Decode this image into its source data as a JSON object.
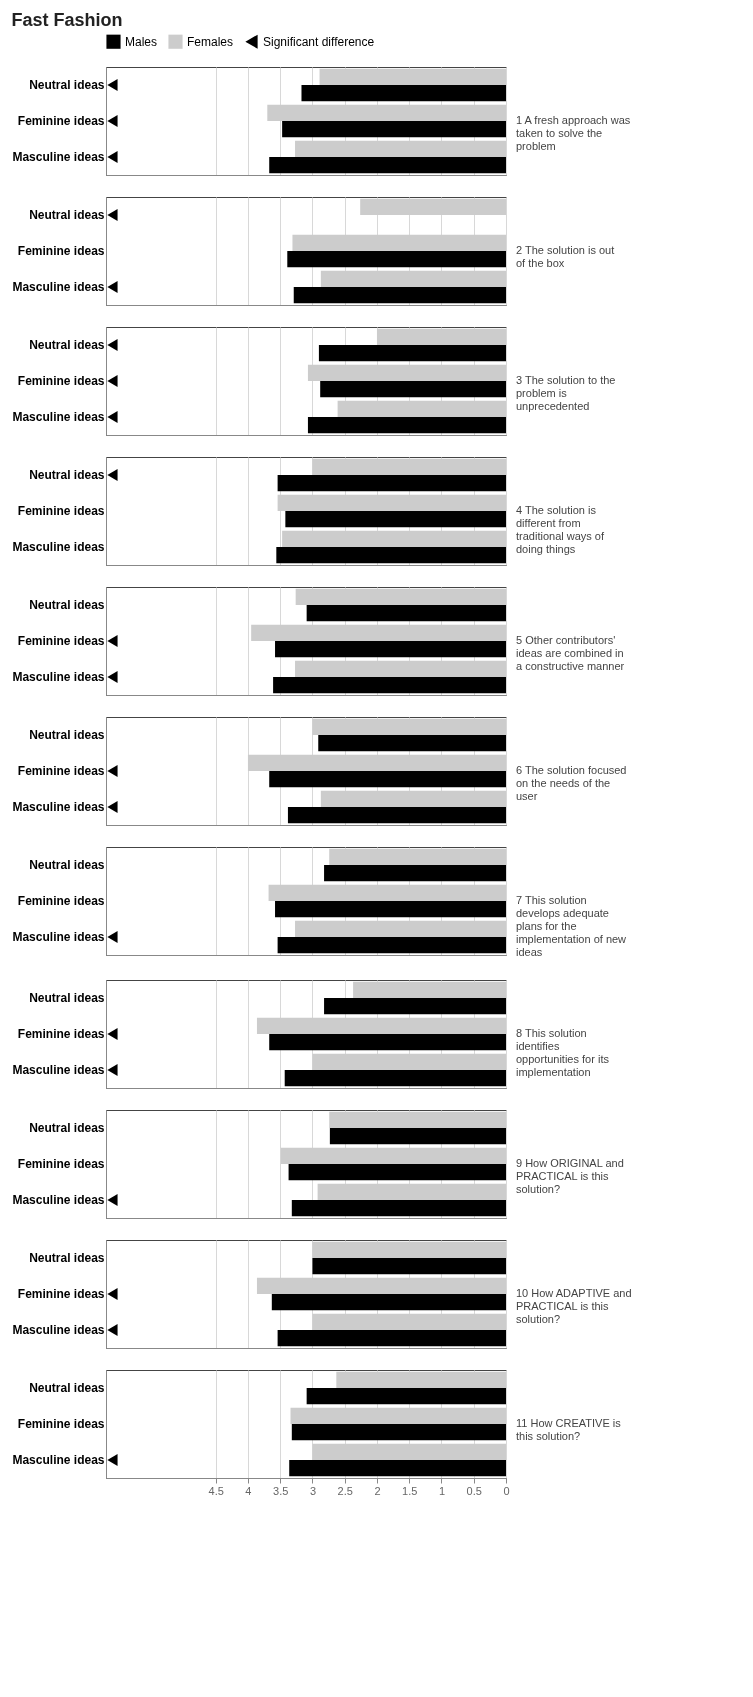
{
  "chart_data": [
    {
      "type": "bar",
      "orientation": "horizontal",
      "title": "Fast Fashion",
      "legend": "top",
      "ylabel": "1 A fresh approach was taken to solve the problem",
      "categories": [
        "Neutral ideas",
        "Feminine ideas",
        "Masculine ideas"
      ],
      "xlim": [
        6.2,
        0
      ],
      "xticks": [
        0,
        0.5,
        1,
        1.5,
        2,
        2.5,
        3,
        3.5,
        4,
        4.5
      ],
      "grid": "x",
      "tick_labels": "y",
      "series": [
        {
          "name": "Males",
          "color": "#000000",
          "values": [
            3.17,
            3.47,
            3.67
          ]
        },
        {
          "name": "Females",
          "color": "#cccccc",
          "values": [
            2.89,
            3.7,
            3.27
          ]
        },
        {
          "name": "Significant difference",
          "type": "scatter",
          "marker": "triangle",
          "color": "#000000",
          "values": [
            6.1,
            6.1,
            6.1
          ]
        }
      ]
    },
    {
      "type": "bar",
      "orientation": "horizontal",
      "ylabel": "2 The solution is out of the box",
      "categories": [
        "Neutral ideas",
        "Feminine ideas",
        "Masculine ideas"
      ],
      "xlim": [
        6.2,
        0
      ],
      "xticks": [
        0,
        0.5,
        1,
        1.5,
        2,
        2.5,
        3,
        3.5,
        4,
        4.5
      ],
      "grid": "x",
      "tick_labels": "y",
      "series": [
        {
          "color": "#000000",
          "values": [
            null,
            3.39,
            3.29
          ]
        },
        {
          "color": "#cccccc",
          "values": [
            2.26,
            3.31,
            2.87
          ]
        },
        {
          "type": "scatter",
          "marker": "triangle",
          "color": "#000000",
          "values": [
            6.1,
            null,
            6.1
          ]
        }
      ]
    },
    {
      "type": "bar",
      "orientation": "horizontal",
      "ylabel": "3 The solution to the problem is unprecedented",
      "categories": [
        "Neutral ideas",
        "Feminine ideas",
        "Masculine ideas"
      ],
      "xlim": [
        6.2,
        0
      ],
      "xticks": [
        0,
        0.5,
        1,
        1.5,
        2,
        2.5,
        3,
        3.5,
        4,
        4.5
      ],
      "grid": "x",
      "tick_labels": "y",
      "series": [
        {
          "color": "#000000",
          "values": [
            2.9,
            2.88,
            3.07
          ]
        },
        {
          "color": "#cccccc",
          "values": [
            2.0,
            3.07,
            2.61
          ]
        },
        {
          "type": "scatter",
          "marker": "triangle",
          "color": "#000000",
          "values": [
            6.1,
            6.1,
            6.1
          ]
        }
      ]
    },
    {
      "type": "bar",
      "orientation": "horizontal",
      "ylabel": "4 The solution is different from traditional ways of doing things",
      "categories": [
        "Neutral ideas",
        "Feminine ideas",
        "Masculine ideas"
      ],
      "xlim": [
        6.2,
        0
      ],
      "xticks": [
        0,
        0.5,
        1,
        1.5,
        2,
        2.5,
        3,
        3.5,
        4,
        4.5
      ],
      "grid": "x",
      "tick_labels": "y",
      "series": [
        {
          "color": "#000000",
          "values": [
            3.54,
            3.42,
            3.56
          ]
        },
        {
          "color": "#cccccc",
          "values": [
            3.0,
            3.54,
            3.47
          ]
        },
        {
          "type": "scatter",
          "marker": "triangle",
          "color": "#000000",
          "values": [
            6.1,
            null,
            null
          ]
        }
      ]
    },
    {
      "type": "bar",
      "orientation": "horizontal",
      "ylabel": "5 Other contributors' ideas are combined in a constructive manner",
      "categories": [
        "Neutral ideas",
        "Feminine ideas",
        "Masculine ideas"
      ],
      "xlim": [
        6.2,
        0
      ],
      "xticks": [
        0,
        0.5,
        1,
        1.5,
        2,
        2.5,
        3,
        3.5,
        4,
        4.5
      ],
      "grid": "x",
      "tick_labels": "y",
      "series": [
        {
          "color": "#000000",
          "values": [
            3.09,
            3.58,
            3.61
          ]
        },
        {
          "color": "#cccccc",
          "values": [
            3.26,
            3.95,
            3.27
          ]
        },
        {
          "type": "scatter",
          "marker": "triangle",
          "color": "#000000",
          "values": [
            null,
            6.1,
            6.1
          ]
        }
      ]
    },
    {
      "type": "bar",
      "orientation": "horizontal",
      "ylabel": "6 The solution focused on the needs of the user",
      "categories": [
        "Neutral ideas",
        "Feminine ideas",
        "Masculine ideas"
      ],
      "xlim": [
        6.2,
        0
      ],
      "xticks": [
        0,
        0.5,
        1,
        1.5,
        2,
        2.5,
        3,
        3.5,
        4,
        4.5
      ],
      "grid": "x",
      "tick_labels": "y",
      "series": [
        {
          "color": "#000000",
          "values": [
            2.91,
            3.67,
            3.38
          ]
        },
        {
          "color": "#cccccc",
          "values": [
            3.0,
            4.0,
            2.87
          ]
        },
        {
          "type": "scatter",
          "marker": "triangle",
          "color": "#000000",
          "values": [
            null,
            6.1,
            6.1
          ]
        }
      ]
    },
    {
      "type": "bar",
      "orientation": "horizontal",
      "ylabel": "7 This solution develops adequate plans for the implementation of new ideas",
      "categories": [
        "Neutral ideas",
        "Feminine ideas",
        "Masculine ideas"
      ],
      "xlim": [
        6.2,
        0
      ],
      "xticks": [
        0,
        0.5,
        1,
        1.5,
        2,
        2.5,
        3,
        3.5,
        4,
        4.5
      ],
      "grid": "x",
      "tick_labels": "y",
      "series": [
        {
          "color": "#000000",
          "values": [
            2.82,
            3.58,
            3.54
          ]
        },
        {
          "color": "#cccccc",
          "values": [
            2.74,
            3.68,
            3.27
          ]
        },
        {
          "type": "scatter",
          "marker": "triangle",
          "color": "#000000",
          "values": [
            null,
            null,
            6.1
          ]
        }
      ]
    },
    {
      "type": "bar",
      "orientation": "horizontal",
      "ylabel": "8 This solution identifies opportunities for its implementation",
      "categories": [
        "Neutral ideas",
        "Feminine ideas",
        "Masculine ideas"
      ],
      "xlim": [
        6.2,
        0
      ],
      "xticks": [
        0,
        0.5,
        1,
        1.5,
        2,
        2.5,
        3,
        3.5,
        4,
        4.5
      ],
      "grid": "x",
      "tick_labels": "y",
      "series": [
        {
          "color": "#000000",
          "values": [
            2.82,
            3.67,
            3.43
          ]
        },
        {
          "color": "#cccccc",
          "values": [
            2.37,
            3.86,
            3.0
          ]
        },
        {
          "type": "scatter",
          "marker": "triangle",
          "color": "#000000",
          "values": [
            null,
            6.1,
            6.1
          ]
        }
      ]
    },
    {
      "type": "bar",
      "orientation": "horizontal",
      "ylabel": "9 How ORIGINAL and PRACTICAL is this solution?",
      "categories": [
        "Neutral ideas",
        "Feminine ideas",
        "Masculine ideas"
      ],
      "xlim": [
        6.2,
        0
      ],
      "xticks": [
        0,
        0.5,
        1,
        1.5,
        2,
        2.5,
        3,
        3.5,
        4,
        4.5
      ],
      "grid": "x",
      "tick_labels": "y",
      "series": [
        {
          "color": "#000000",
          "values": [
            2.73,
            3.37,
            3.32
          ]
        },
        {
          "color": "#cccccc",
          "values": [
            2.74,
            3.49,
            2.92
          ]
        },
        {
          "type": "scatter",
          "marker": "triangle",
          "color": "#000000",
          "values": [
            null,
            null,
            6.1
          ]
        }
      ]
    },
    {
      "type": "bar",
      "orientation": "horizontal",
      "ylabel": "10 How ADAPTIVE and PRACTICAL is this solution?",
      "categories": [
        "Neutral ideas",
        "Feminine ideas",
        "Masculine ideas"
      ],
      "xlim": [
        6.2,
        0
      ],
      "xticks": [
        0,
        0.5,
        1,
        1.5,
        2,
        2.5,
        3,
        3.5,
        4,
        4.5
      ],
      "grid": "x",
      "tick_labels": "y",
      "series": [
        {
          "color": "#000000",
          "values": [
            3.0,
            3.63,
            3.54
          ]
        },
        {
          "color": "#cccccc",
          "values": [
            3.0,
            3.86,
            3.0
          ]
        },
        {
          "type": "scatter",
          "marker": "triangle",
          "color": "#000000",
          "values": [
            null,
            6.1,
            6.1
          ]
        }
      ]
    },
    {
      "type": "bar",
      "orientation": "horizontal",
      "ylabel": "11 How CREATIVE is this solution?",
      "categories": [
        "Neutral ideas",
        "Feminine ideas",
        "Masculine ideas"
      ],
      "xlim": [
        6.2,
        0
      ],
      "xticks": [
        0,
        0.5,
        1,
        1.5,
        2,
        2.5,
        3,
        3.5,
        4,
        4.5
      ],
      "grid": "x",
      "series": [
        {
          "color": "#000000",
          "values": [
            3.09,
            3.32,
            3.36
          ]
        },
        {
          "color": "#cccccc",
          "values": [
            2.63,
            3.34,
            3.0
          ]
        },
        {
          "type": "scatter",
          "marker": "triangle",
          "color": "#000000",
          "values": [
            null,
            null,
            6.1
          ]
        }
      ]
    }
  ]
}
